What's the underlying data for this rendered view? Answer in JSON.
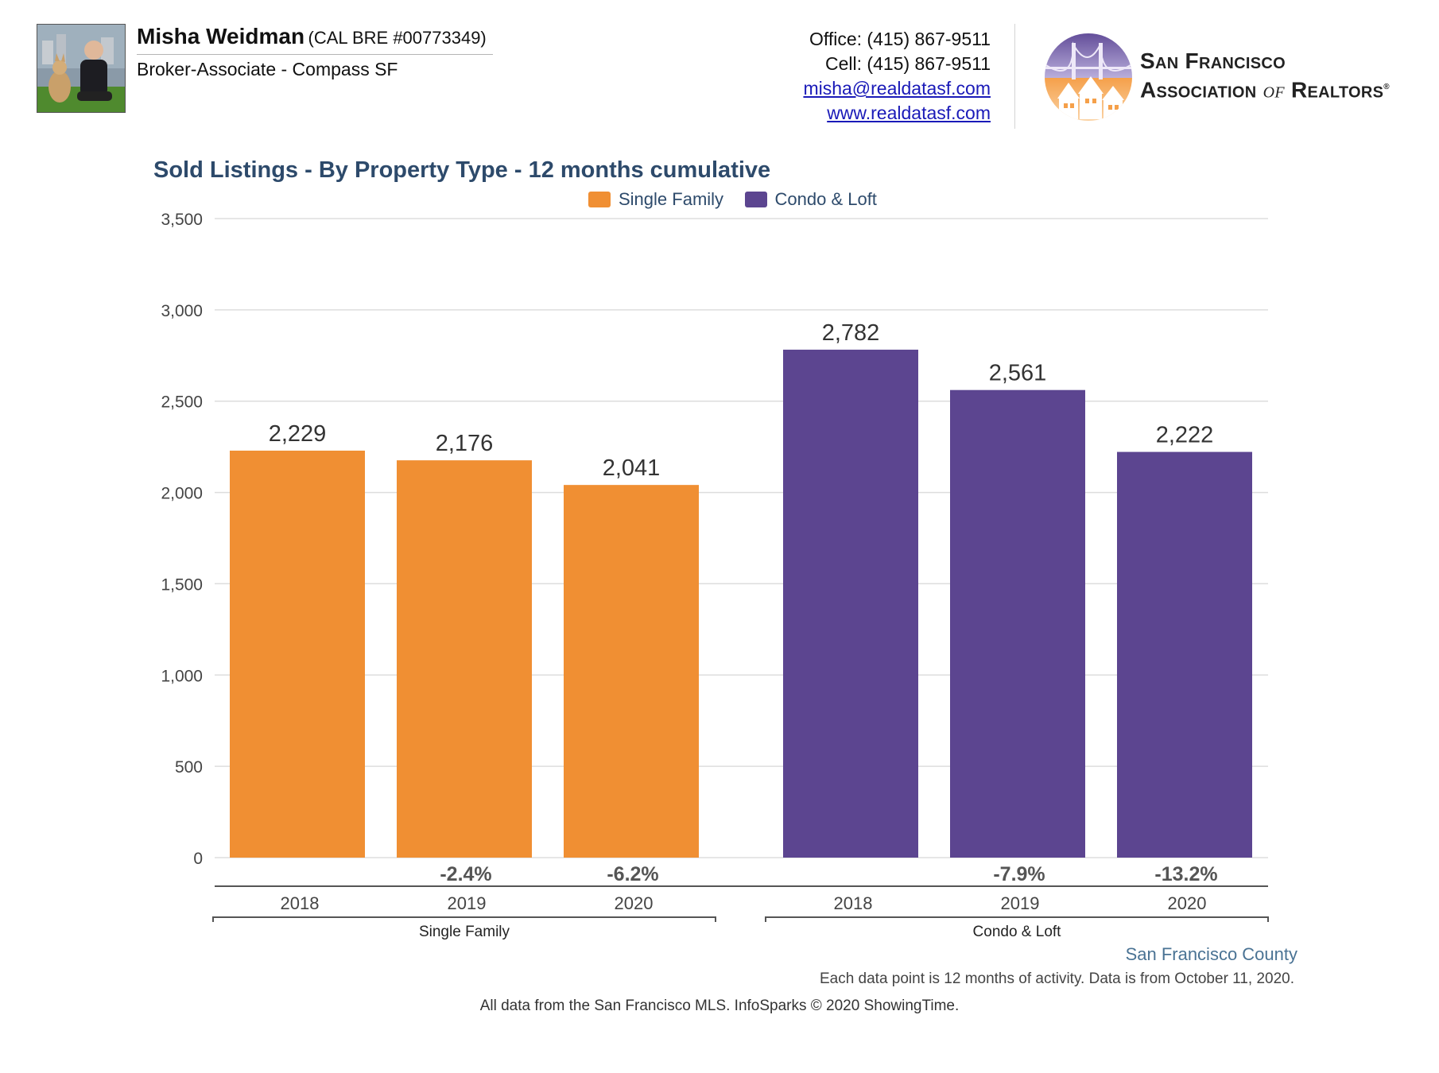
{
  "header": {
    "agent_name": "Misha Weidman",
    "agent_license": "(CAL BRE #00773349)",
    "agent_title": "Broker-Associate - Compass SF",
    "office": "Office: (415) 867-9511",
    "cell": "Cell: (415) 867-9511",
    "email": "misha@realdatasf.com",
    "website": "www.realdatasf.com",
    "org_line1": "San Francisco",
    "org_line2_a": "Association",
    "org_line2_of": "of",
    "org_line2_b": "Realtors",
    "org_registered": "®"
  },
  "colors": {
    "single_family": "#f08f33",
    "condo_loft": "#5c4590",
    "title": "#2d4a6b",
    "grid": "#dddddd"
  },
  "chart_data": {
    "type": "bar",
    "title": "Sold Listings - By Property Type - 12 months cumulative",
    "legend": [
      "Single Family",
      "Condo & Loft"
    ],
    "legend_position": "top-center",
    "y_ticks": [
      "0",
      "500",
      "1,000",
      "1,500",
      "2,000",
      "2,500",
      "3,000",
      "3,500"
    ],
    "ylim": [
      0,
      3500
    ],
    "grid": true,
    "groups": [
      {
        "name": "Single Family",
        "color_key": "single_family",
        "categories": [
          "2018",
          "2019",
          "2020"
        ],
        "values": [
          2229,
          2176,
          2041
        ],
        "value_labels": [
          "2,229",
          "2,176",
          "2,041"
        ],
        "changes": [
          "",
          "-2.4%",
          "-6.2%"
        ]
      },
      {
        "name": "Condo & Loft",
        "color_key": "condo_loft",
        "categories": [
          "2018",
          "2019",
          "2020"
        ],
        "values": [
          2782,
          2561,
          2222
        ],
        "value_labels": [
          "2,782",
          "2,561",
          "2,222"
        ],
        "changes": [
          "",
          "-7.9%",
          "-13.2%"
        ]
      }
    ]
  },
  "footer": {
    "region": "San Francisco County",
    "note": "Each data point is 12 months of activity. Data is from October 11, 2020.",
    "source": "All data from the San Francisco MLS. InfoSparks © 2020 ShowingTime."
  }
}
